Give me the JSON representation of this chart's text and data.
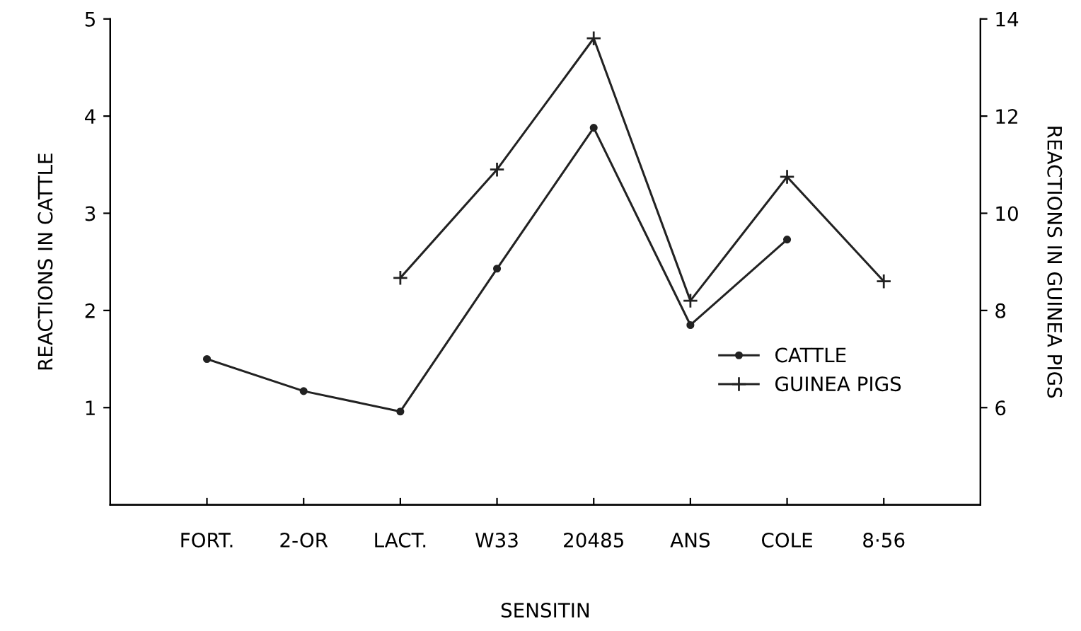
{
  "chart_data": {
    "type": "line",
    "xlabel": "SENSITIN",
    "ylabel": "REACTIONS IN CATTLE",
    "y2label": "REACTIONS IN GUINEA PIGS",
    "categories": [
      "FORT.",
      "2-OR",
      "LACT.",
      "W33",
      "20485",
      "ANS",
      "COLE",
      "8·56"
    ],
    "series": [
      {
        "name": "CATTLE",
        "color": "#222222",
        "marker": "circle",
        "values": [
          1.5,
          1.17,
          0.96,
          2.43,
          3.88,
          1.85,
          2.73,
          null
        ]
      },
      {
        "name": "GUINEA PIGS",
        "color": "#222222",
        "marker": "cross",
        "axis": "y2",
        "values": [
          null,
          null,
          8.67,
          10.9,
          13.6,
          8.2,
          10.75,
          8.6
        ]
      }
    ],
    "ylim": [
      0,
      5
    ],
    "yticks": [
      1,
      2,
      3,
      4,
      5
    ],
    "y2lim": [
      4,
      14
    ],
    "y2ticks": [
      6,
      8,
      10,
      12,
      14
    ],
    "grid": false,
    "legend": "center right",
    "line_style": "solid"
  }
}
